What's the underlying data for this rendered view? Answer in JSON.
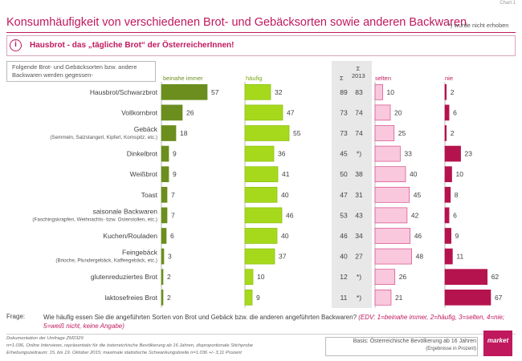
{
  "chart_no": "Chart 1",
  "title": "Konsumhäufigkeit von verschiedenen Brot- und Gebäcksorten sowie anderen Backwaren",
  "note": "*) wurde nicht erhoben",
  "subtitle": "Hausbrot  - das „tägliche Brot“ der ÖsterreicherInnen!",
  "question_box": "Folgende Brot- und Gebäcksorten bzw. andere Backwaren werden gegessen-",
  "headers": {
    "beinahe": "beinahe immer",
    "haeufig": "häufig",
    "sigma": "Σ",
    "sigma2013": "Σ 2013",
    "selten": "selten",
    "nie": "nie"
  },
  "colors": {
    "beinahe": "#6b8e1e",
    "haeufig": "#a6d91c",
    "selten": "#f9c8dc",
    "nie": "#b5134e",
    "accent": "#c0185d"
  },
  "frage_label": "Frage:",
  "frage_text": "Wie häufig essen Sie die angeführten Sorten von Brot und Gebäck bzw. die anderen angeführten Backwaren?",
  "frage_scale": "(EDV: 1=beinahe immer, 2=häufig, 3=selten, 4=nie; 5=weiß nicht, keine Angabe)",
  "footer": {
    "line1": "Dokumentation der Umfrage ZM2329",
    "line2": "n=1.036, Online Interviews, repräsentativ für die österreichische Bevölkerung ab 16 Jahren, disproportionale Stichprobe",
    "line3": "Erhebungszeitraum: 15. bis 19. Oktober 2015; maximale statistische Schwankungsbreite n=1.036 +/- 3,11 Prozent"
  },
  "basis": "Basis: Österreichische Bevölkerung ab 16 Jahren",
  "basis_sub": "(Ergebnisse in Prozent)",
  "logo": "market",
  "chart_data": {
    "type": "bar",
    "categories": [
      {
        "label": "Hausbrot/Schwarzbrot",
        "sub": ""
      },
      {
        "label": "Vollkornbrot",
        "sub": ""
      },
      {
        "label": "Gebäck",
        "sub": "(Semmeln,  Salzstangerl, Kipferl, Kornspitz, etc.)"
      },
      {
        "label": "Dinkelbrot",
        "sub": ""
      },
      {
        "label": "Weißbrot",
        "sub": ""
      },
      {
        "label": "Toast",
        "sub": ""
      },
      {
        "label": "saisonale Backwaren",
        "sub": "(Faschingskrapfen, Weihnachts- bzw. Osterstollen, etc.)"
      },
      {
        "label": "Kuchen/Rouladen",
        "sub": ""
      },
      {
        "label": "Feingebäck",
        "sub": "(Brioche, Plundergebäck, Kaffeegebäck, etc.)"
      },
      {
        "label": "glutenreduziertes  Brot",
        "sub": ""
      },
      {
        "label": "laktosefreies Brot",
        "sub": ""
      }
    ],
    "series": [
      {
        "name": "beinahe immer",
        "values": [
          57,
          26,
          18,
          9,
          9,
          7,
          7,
          6,
          3,
          2,
          2
        ]
      },
      {
        "name": "häufig",
        "values": [
          32,
          47,
          55,
          36,
          41,
          40,
          46,
          40,
          37,
          10,
          9
        ]
      },
      {
        "name": "selten",
        "values": [
          10,
          20,
          25,
          33,
          40,
          45,
          42,
          46,
          48,
          26,
          21
        ]
      },
      {
        "name": "nie",
        "values": [
          2,
          6,
          2,
          23,
          10,
          8,
          6,
          9,
          11,
          62,
          67
        ]
      }
    ],
    "sigma": [
      "89",
      "73",
      "73",
      "45",
      "50",
      "47",
      "53",
      "46",
      "40",
      "12",
      "11"
    ],
    "sigma_2013": [
      "83",
      "74",
      "74",
      "*)",
      "38",
      "31",
      "43",
      "34",
      "27",
      "*)",
      "*)"
    ]
  }
}
